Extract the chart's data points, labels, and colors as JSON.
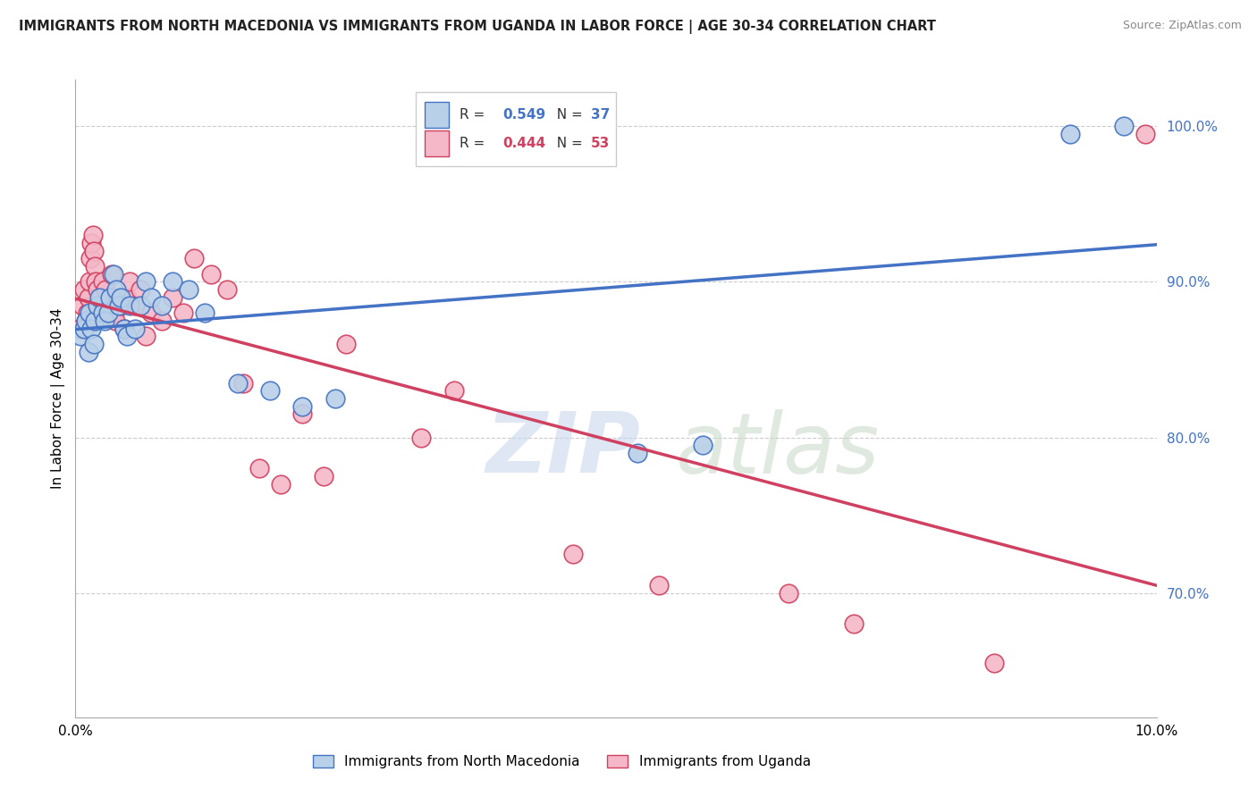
{
  "title": "IMMIGRANTS FROM NORTH MACEDONIA VS IMMIGRANTS FROM UGANDA IN LABOR FORCE | AGE 30-34 CORRELATION CHART",
  "source": "Source: ZipAtlas.com",
  "ylabel": "In Labor Force | Age 30-34",
  "xlim": [
    0.0,
    10.0
  ],
  "ylim": [
    62.0,
    103.0
  ],
  "blue_color": "#b8d0e8",
  "pink_color": "#f4b8c8",
  "blue_line_color": "#4472c4",
  "pink_line_color": "#d04060",
  "legend_blue_label": "Immigrants from North Macedonia",
  "legend_pink_label": "Immigrants from Uganda",
  "R_blue": 0.549,
  "N_blue": 37,
  "R_pink": 0.444,
  "N_pink": 53,
  "blue_scatter_x": [
    0.05,
    0.08,
    0.1,
    0.12,
    0.13,
    0.15,
    0.17,
    0.18,
    0.2,
    0.22,
    0.25,
    0.27,
    0.3,
    0.32,
    0.35,
    0.38,
    0.4,
    0.42,
    0.45,
    0.48,
    0.5,
    0.55,
    0.6,
    0.65,
    0.7,
    0.8,
    0.9,
    1.05,
    1.2,
    1.5,
    1.8,
    2.1,
    2.4,
    5.2,
    5.8,
    9.2,
    9.7
  ],
  "blue_scatter_y": [
    86.5,
    87.0,
    87.5,
    85.5,
    88.0,
    87.0,
    86.0,
    87.5,
    88.5,
    89.0,
    88.0,
    87.5,
    88.0,
    89.0,
    90.5,
    89.5,
    88.5,
    89.0,
    87.0,
    86.5,
    88.5,
    87.0,
    88.5,
    90.0,
    89.0,
    88.5,
    90.0,
    89.5,
    88.0,
    83.5,
    83.0,
    82.0,
    82.5,
    79.0,
    79.5,
    99.5,
    100.0
  ],
  "pink_scatter_x": [
    0.04,
    0.06,
    0.08,
    0.1,
    0.11,
    0.12,
    0.13,
    0.14,
    0.15,
    0.16,
    0.17,
    0.18,
    0.19,
    0.2,
    0.22,
    0.23,
    0.25,
    0.27,
    0.28,
    0.3,
    0.32,
    0.34,
    0.35,
    0.37,
    0.4,
    0.42,
    0.45,
    0.48,
    0.5,
    0.55,
    0.6,
    0.65,
    0.7,
    0.8,
    0.9,
    1.0,
    1.1,
    1.25,
    1.4,
    1.55,
    1.7,
    1.9,
    2.1,
    2.3,
    2.5,
    3.2,
    3.5,
    4.6,
    5.4,
    6.6,
    7.2,
    8.5,
    9.9
  ],
  "pink_scatter_y": [
    87.0,
    88.5,
    89.5,
    87.5,
    88.0,
    89.0,
    90.0,
    91.5,
    92.5,
    93.0,
    92.0,
    91.0,
    90.0,
    89.5,
    88.0,
    89.0,
    90.0,
    88.5,
    89.5,
    88.0,
    89.0,
    90.5,
    88.0,
    87.5,
    89.0,
    88.5,
    87.0,
    89.0,
    90.0,
    88.5,
    89.5,
    86.5,
    88.0,
    87.5,
    89.0,
    88.0,
    91.5,
    90.5,
    89.5,
    83.5,
    78.0,
    77.0,
    81.5,
    77.5,
    86.0,
    80.0,
    83.0,
    72.5,
    70.5,
    70.0,
    68.0,
    65.5,
    99.5
  ]
}
